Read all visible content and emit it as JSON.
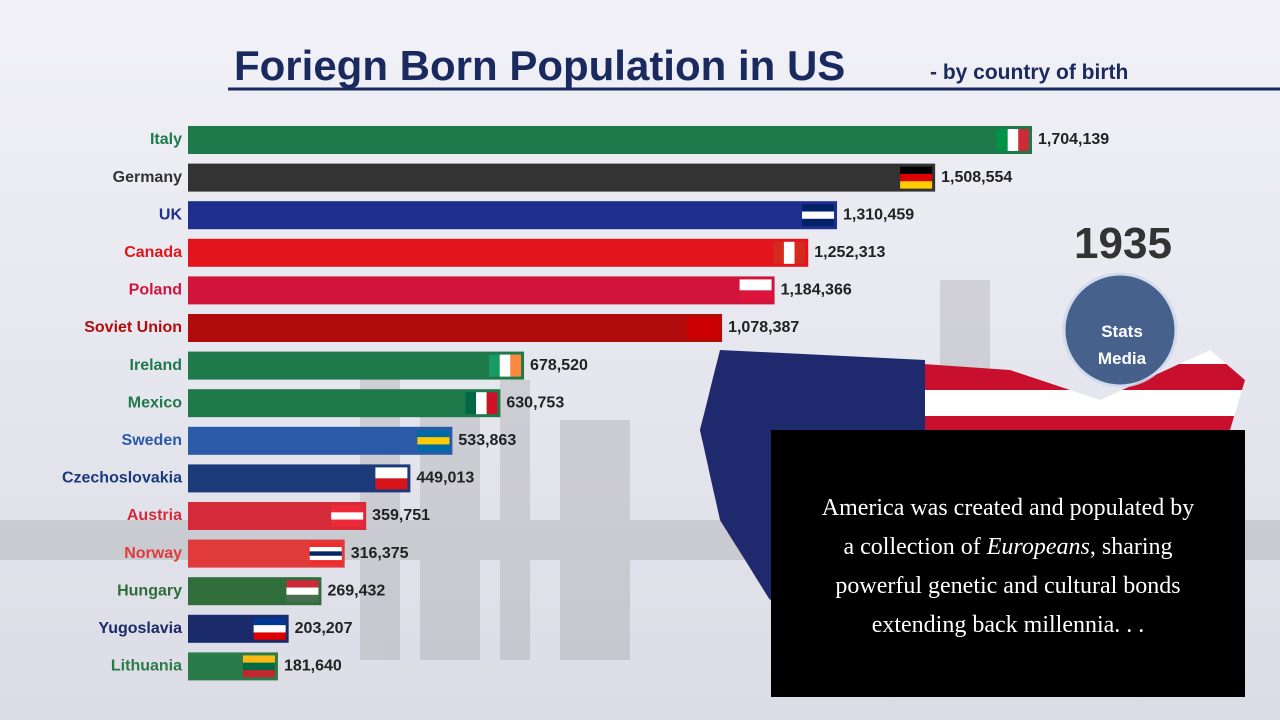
{
  "chart_data": {
    "type": "hbar",
    "title": "Foriegn Born Population in US",
    "subtitle": "- by country of birth",
    "year": "1935",
    "logo": [
      "Stats",
      "Media"
    ],
    "categories": [
      "Italy",
      "Germany",
      "UK",
      "Canada",
      "Poland",
      "Soviet Union",
      "Ireland",
      "Mexico",
      "Sweden",
      "Czechoslovakia",
      "Austria",
      "Norway",
      "Hungary",
      "Yugoslavia",
      "Lithuania"
    ],
    "values": [
      1704139,
      1508554,
      1310459,
      1252313,
      1184366,
      1078387,
      678520,
      630753,
      533863,
      449013,
      359751,
      316375,
      269432,
      203207,
      181640
    ],
    "value_labels": [
      "1,704,139",
      "1,508,554",
      "1,310,459",
      "1,252,313",
      "1,184,366",
      "1,078,387",
      "678,520",
      "630,753",
      "533,863",
      "449,013",
      "359,751",
      "316,375",
      "269,432",
      "203,207",
      "181,640"
    ],
    "colors": [
      "#1e7a4a",
      "#333333",
      "#1f2f8f",
      "#e3141b",
      "#d0143a",
      "#b00c0c",
      "#1e7a4a",
      "#1e7a4a",
      "#2a5aa8",
      "#1a3a7a",
      "#d42a3a",
      "#e03a3a",
      "#2f6e3a",
      "#1a2a6a",
      "#2a7a4a"
    ],
    "caption": [
      "America was created and populated by",
      "a collection of ",
      "Europeans",
      ", sharing",
      "powerful genetic and cultural bonds",
      "extending back millennia. . ."
    ]
  }
}
